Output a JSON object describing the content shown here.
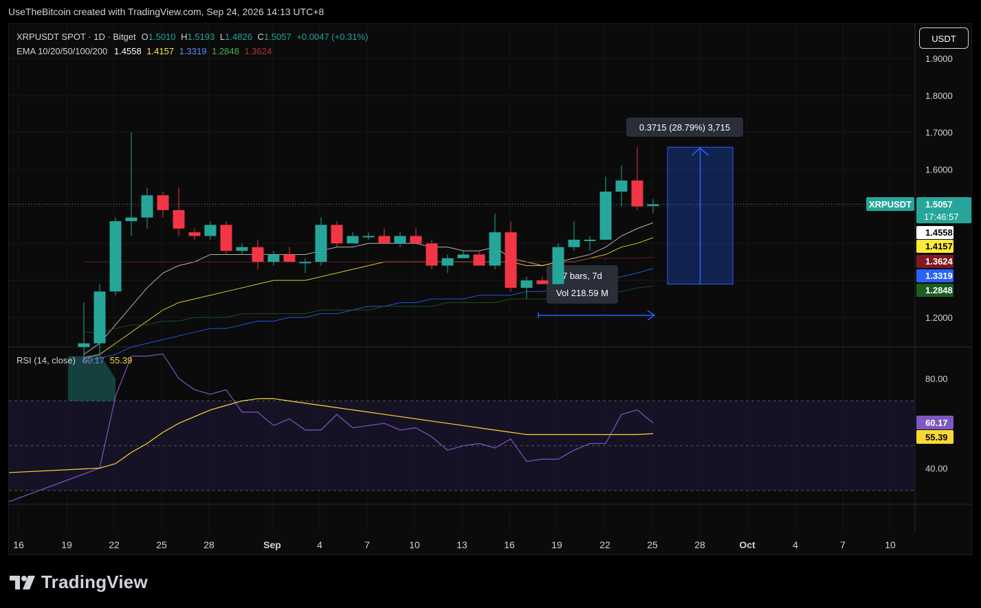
{
  "header": {
    "attribution": "UseTheBitcoin created with TradingView.com, Sep 24, 2026 14:13 UTC+8"
  },
  "legend": {
    "symbol": "XRPUSDT SPOT · 1D · Bitget",
    "o_label": "O",
    "o_value": "1.5010",
    "h_label": "H",
    "h_value": "1.5193",
    "l_label": "L",
    "l_value": "1.4826",
    "c_label": "C",
    "c_value": "1.5057",
    "change": "+0.0047 (+0.31%)",
    "ema_title": "EMA 10/20/50/100/200",
    "ema_values": [
      "1.4558",
      "1.4157",
      "1.3319",
      "1.2848",
      "1.3624"
    ],
    "rsi_title": "RSI (14, close)",
    "rsi_value": "60.17",
    "rsi_ma_value": "55.39"
  },
  "currency_button": "USDT",
  "branding": "TradingView",
  "colors": {
    "up": "#26a69a",
    "down": "#f23645",
    "ema10": "#d1d4dc",
    "ema20": "#ffeb3b",
    "ema50": "#2962ff",
    "ema100": "#1b5e20",
    "ema200": "#801922",
    "rsi": "#7e57c2",
    "rsi_ma": "#fdd835",
    "measure": "#2962ff"
  },
  "chart_data": {
    "type": "candlestick",
    "title": "XRPUSDT SPOT · 1D · Bitget",
    "y_ticks": [
      "1.9000",
      "1.8000",
      "1.7000",
      "1.6000",
      "1.2000"
    ],
    "x_ticks": [
      "16",
      "19",
      "22",
      "25",
      "28",
      "Sep",
      "4",
      "7",
      "10",
      "13",
      "16",
      "19",
      "22",
      "25",
      "28",
      "Oct",
      "4",
      "7",
      "10"
    ],
    "price_range": [
      1.12,
      1.98
    ],
    "last_price": 1.5057,
    "series_names": [
      "XRPUSDT"
    ],
    "candles": [
      {
        "date": "Aug 19",
        "o": 1.12,
        "h": 1.24,
        "l": 1.08,
        "c": 1.13
      },
      {
        "date": "Aug 20",
        "o": 1.13,
        "h": 1.29,
        "l": 1.1,
        "c": 1.27
      },
      {
        "date": "Aug 21",
        "o": 1.27,
        "h": 1.47,
        "l": 1.26,
        "c": 1.46
      },
      {
        "date": "Aug 22",
        "o": 1.46,
        "h": 1.7,
        "l": 1.42,
        "c": 1.47
      },
      {
        "date": "Aug 23",
        "o": 1.47,
        "h": 1.55,
        "l": 1.44,
        "c": 1.53
      },
      {
        "date": "Aug 24",
        "o": 1.53,
        "h": 1.54,
        "l": 1.47,
        "c": 1.49
      },
      {
        "date": "Aug 25",
        "o": 1.49,
        "h": 1.55,
        "l": 1.42,
        "c": 1.44
      },
      {
        "date": "Aug 26",
        "o": 1.43,
        "h": 1.44,
        "l": 1.41,
        "c": 1.42
      },
      {
        "date": "Aug 27",
        "o": 1.42,
        "h": 1.46,
        "l": 1.41,
        "c": 1.45
      },
      {
        "date": "Aug 28",
        "o": 1.45,
        "h": 1.46,
        "l": 1.37,
        "c": 1.38
      },
      {
        "date": "Aug 29",
        "o": 1.38,
        "h": 1.4,
        "l": 1.37,
        "c": 1.39
      },
      {
        "date": "Aug 30",
        "o": 1.39,
        "h": 1.41,
        "l": 1.33,
        "c": 1.35
      },
      {
        "date": "Aug 31",
        "o": 1.35,
        "h": 1.38,
        "l": 1.34,
        "c": 1.37
      },
      {
        "date": "Sep 1",
        "o": 1.37,
        "h": 1.39,
        "l": 1.35,
        "c": 1.35
      },
      {
        "date": "Sep 2",
        "o": 1.35,
        "h": 1.36,
        "l": 1.32,
        "c": 1.35
      },
      {
        "date": "Sep 3",
        "o": 1.35,
        "h": 1.47,
        "l": 1.34,
        "c": 1.45
      },
      {
        "date": "Sep 4",
        "o": 1.45,
        "h": 1.46,
        "l": 1.39,
        "c": 1.4
      },
      {
        "date": "Sep 5",
        "o": 1.4,
        "h": 1.43,
        "l": 1.4,
        "c": 1.42
      },
      {
        "date": "Sep 6",
        "o": 1.42,
        "h": 1.43,
        "l": 1.41,
        "c": 1.42
      },
      {
        "date": "Sep 7",
        "o": 1.42,
        "h": 1.44,
        "l": 1.4,
        "c": 1.4
      },
      {
        "date": "Sep 8",
        "o": 1.4,
        "h": 1.43,
        "l": 1.39,
        "c": 1.42
      },
      {
        "date": "Sep 9",
        "o": 1.42,
        "h": 1.44,
        "l": 1.4,
        "c": 1.4
      },
      {
        "date": "Sep 10",
        "o": 1.4,
        "h": 1.41,
        "l": 1.33,
        "c": 1.34
      },
      {
        "date": "Sep 11",
        "o": 1.34,
        "h": 1.37,
        "l": 1.32,
        "c": 1.36
      },
      {
        "date": "Sep 12",
        "o": 1.36,
        "h": 1.38,
        "l": 1.36,
        "c": 1.37
      },
      {
        "date": "Sep 13",
        "o": 1.37,
        "h": 1.38,
        "l": 1.34,
        "c": 1.34
      },
      {
        "date": "Sep 14",
        "o": 1.34,
        "h": 1.48,
        "l": 1.33,
        "c": 1.43
      },
      {
        "date": "Sep 15",
        "o": 1.43,
        "h": 1.46,
        "l": 1.27,
        "c": 1.28
      },
      {
        "date": "Sep 16",
        "o": 1.28,
        "h": 1.31,
        "l": 1.25,
        "c": 1.3
      },
      {
        "date": "Sep 17",
        "o": 1.3,
        "h": 1.31,
        "l": 1.29,
        "c": 1.29
      },
      {
        "date": "Sep 18",
        "o": 1.29,
        "h": 1.4,
        "l": 1.29,
        "c": 1.39
      },
      {
        "date": "Sep 19",
        "o": 1.39,
        "h": 1.46,
        "l": 1.38,
        "c": 1.41
      },
      {
        "date": "Sep 20",
        "o": 1.41,
        "h": 1.42,
        "l": 1.38,
        "c": 1.41
      },
      {
        "date": "Sep 21",
        "o": 1.41,
        "h": 1.58,
        "l": 1.41,
        "c": 1.54
      },
      {
        "date": "Sep 22",
        "o": 1.54,
        "h": 1.61,
        "l": 1.5,
        "c": 1.57
      },
      {
        "date": "Sep 23",
        "o": 1.57,
        "h": 1.66,
        "l": 1.49,
        "c": 1.5
      },
      {
        "date": "Sep 24",
        "o": 1.501,
        "h": 1.5193,
        "l": 1.4826,
        "c": 1.5057
      }
    ],
    "ema_lines": [
      {
        "name": "EMA 10",
        "last": 1.4558,
        "values": [
          1.1,
          1.13,
          1.18,
          1.23,
          1.28,
          1.32,
          1.34,
          1.35,
          1.37,
          1.37,
          1.37,
          1.37,
          1.37,
          1.37,
          1.37,
          1.38,
          1.39,
          1.39,
          1.4,
          1.4,
          1.4,
          1.4,
          1.39,
          1.39,
          1.38,
          1.38,
          1.39,
          1.36,
          1.35,
          1.34,
          1.35,
          1.36,
          1.37,
          1.39,
          1.42,
          1.44,
          1.4558
        ]
      },
      {
        "name": "EMA 20",
        "last": 1.4157,
        "values": [
          1.09,
          1.1,
          1.13,
          1.16,
          1.19,
          1.22,
          1.24,
          1.25,
          1.26,
          1.27,
          1.28,
          1.29,
          1.3,
          1.3,
          1.3,
          1.31,
          1.32,
          1.33,
          1.34,
          1.35,
          1.35,
          1.35,
          1.35,
          1.35,
          1.35,
          1.35,
          1.35,
          1.35,
          1.34,
          1.34,
          1.35,
          1.35,
          1.36,
          1.37,
          1.39,
          1.4,
          1.4157
        ]
      },
      {
        "name": "EMA 50",
        "last": 1.3319,
        "values": [
          1.08,
          1.09,
          1.1,
          1.12,
          1.13,
          1.14,
          1.15,
          1.16,
          1.17,
          1.17,
          1.18,
          1.19,
          1.19,
          1.2,
          1.2,
          1.21,
          1.21,
          1.22,
          1.23,
          1.23,
          1.24,
          1.24,
          1.25,
          1.25,
          1.25,
          1.26,
          1.26,
          1.26,
          1.27,
          1.27,
          1.28,
          1.28,
          1.29,
          1.3,
          1.31,
          1.32,
          1.3319
        ]
      },
      {
        "name": "EMA 100",
        "last": 1.2848,
        "values": [
          1.16,
          1.16,
          1.17,
          1.18,
          1.18,
          1.19,
          1.19,
          1.2,
          1.2,
          1.2,
          1.21,
          1.21,
          1.21,
          1.21,
          1.21,
          1.22,
          1.22,
          1.22,
          1.22,
          1.23,
          1.23,
          1.23,
          1.23,
          1.24,
          1.24,
          1.24,
          1.24,
          1.25,
          1.25,
          1.25,
          1.25,
          1.26,
          1.26,
          1.27,
          1.27,
          1.28,
          1.2848
        ]
      },
      {
        "name": "EMA 200",
        "last": 1.3624,
        "values": [
          1.35,
          1.35,
          1.35,
          1.35,
          1.35,
          1.35,
          1.35,
          1.35,
          1.35,
          1.35,
          1.35,
          1.35,
          1.35,
          1.35,
          1.35,
          1.35,
          1.35,
          1.35,
          1.35,
          1.35,
          1.35,
          1.35,
          1.35,
          1.35,
          1.35,
          1.35,
          1.35,
          1.35,
          1.35,
          1.35,
          1.35,
          1.35,
          1.36,
          1.36,
          1.36,
          1.36,
          1.3624
        ]
      }
    ],
    "rsi": {
      "y_ticks": [
        "80.00",
        "40.00"
      ],
      "range": [
        25,
        95
      ],
      "upper_band": 70,
      "lower_band": 30,
      "rsi_values": [
        25,
        40,
        72,
        90,
        90,
        91,
        80,
        75,
        73,
        75,
        65,
        65,
        59,
        62,
        57,
        57,
        64,
        58,
        59,
        60,
        57,
        58,
        54,
        48,
        50,
        51,
        49,
        53,
        43,
        44,
        44,
        48,
        51,
        51,
        64,
        66,
        60.17
      ],
      "ma_values": [
        38,
        40,
        42,
        47,
        51,
        56,
        60,
        63,
        66,
        68,
        70,
        71,
        71,
        70,
        69,
        68,
        67,
        66,
        65,
        64,
        63,
        62,
        61,
        60,
        59,
        58,
        57,
        56,
        55,
        55,
        55,
        55,
        55,
        55,
        55,
        55,
        55.39
      ]
    },
    "annotations": {
      "price_range_label": "0.3715 (28.79%) 3,715",
      "bars_label": "7 bars, 7d",
      "volume_label": "Vol 218.59 M",
      "countdown": "17:46:57"
    }
  }
}
